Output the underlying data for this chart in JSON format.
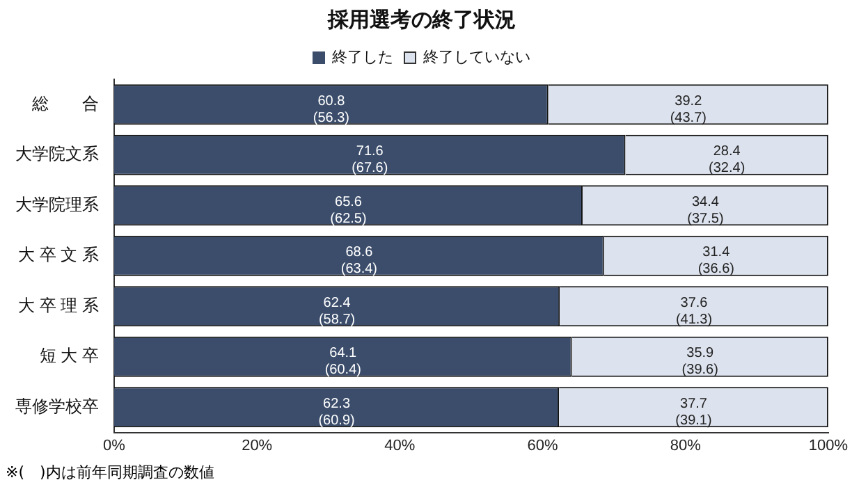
{
  "chart_data": {
    "type": "bar",
    "orientation": "horizontal",
    "stacked": true,
    "title": "採用選考の終了状況",
    "categories": [
      "総　　合",
      "大学院文系",
      "大学院理系",
      "大 卒 文 系",
      "大 卒 理 系",
      "短 大 卒",
      "専修学校卒"
    ],
    "series": [
      {
        "name": "終了した",
        "color": "#3b4d6b",
        "values": [
          60.8,
          71.6,
          65.6,
          68.6,
          62.4,
          64.1,
          62.3
        ],
        "value_labels": [
          "60.8\n(56.3)",
          "71.6\n(67.6)",
          "65.6\n(62.5)",
          "68.6\n(63.4)",
          "62.4\n(58.7)",
          "64.1\n(60.4)",
          "62.3\n(60.9)"
        ]
      },
      {
        "name": "終了していない",
        "color": "#dde3ee",
        "values": [
          39.2,
          28.4,
          34.4,
          31.4,
          37.6,
          35.9,
          37.7
        ],
        "value_labels": [
          "39.2\n(43.7)",
          "28.4\n(32.4)",
          "34.4\n(37.5)",
          "31.4\n(36.6)",
          "37.6\n(41.3)",
          "35.9\n(39.6)",
          "37.7\n(39.1)"
        ]
      }
    ],
    "xlim": [
      0,
      100
    ],
    "xticks": [
      {
        "value": 0,
        "label": "0%"
      },
      {
        "value": 20,
        "label": "20%"
      },
      {
        "value": 40,
        "label": "40%"
      },
      {
        "value": 60,
        "label": "60%"
      },
      {
        "value": 80,
        "label": "80%"
      },
      {
        "value": 100,
        "label": "100%"
      }
    ],
    "grid": false,
    "legend": "top",
    "annotations": [
      "※(　)内は前年同期調査の数値"
    ]
  }
}
